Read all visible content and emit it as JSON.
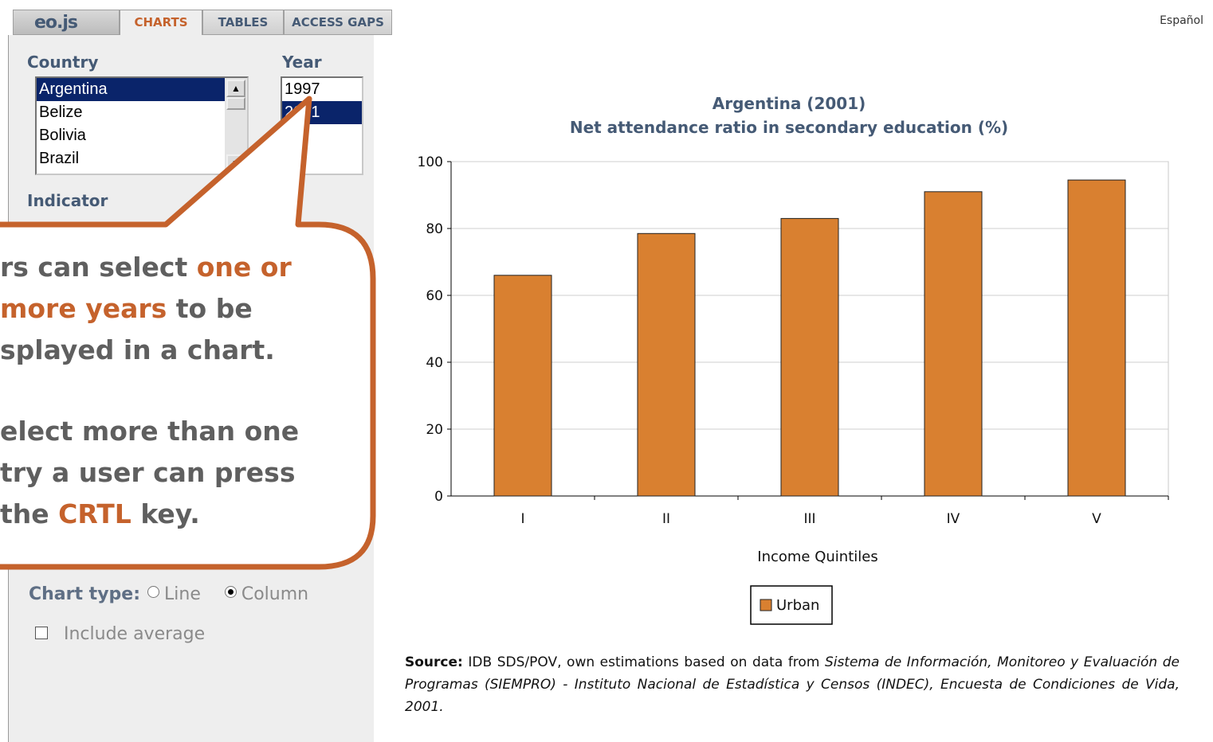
{
  "header": {
    "logo": "eo.js",
    "tabs": [
      {
        "label": "CHARTS",
        "active": true
      },
      {
        "label": "TABLES",
        "active": false
      },
      {
        "label": "ACCESS GAPS",
        "active": false
      }
    ],
    "language": "Español"
  },
  "sidebar": {
    "country_label": "Country",
    "countries": [
      "Argentina",
      "Belize",
      "Bolivia",
      "Brazil"
    ],
    "selected_country": "Argentina",
    "year_label": "Year",
    "years": [
      "1997",
      "2001"
    ],
    "selected_year": "2001",
    "indicator_label": "Indicator",
    "chart_type_label": "Chart type:",
    "chart_types": [
      "Line",
      "Column"
    ],
    "selected_chart_type": "Column",
    "include_average_label": "Include average",
    "include_average_checked": false
  },
  "callout": {
    "line1_a": "rs can select ",
    "line1_b": "one or",
    "line2_a": "more years",
    "line2_b": " to be",
    "line3": "splayed in a chart.",
    "line4": "elect more than one",
    "line5": "try a user can press",
    "line6_a": " the ",
    "line6_b": "CRTL",
    "line6_c": " key.",
    "accent": "#c5622c"
  },
  "chart_data": {
    "type": "bar",
    "title": "Argentina (2001)",
    "subtitle": "Net attendance ratio in secondary education (%)",
    "categories": [
      "I",
      "II",
      "III",
      "IV",
      "V"
    ],
    "series": [
      {
        "name": "Urban",
        "values": [
          66,
          78.5,
          83,
          91,
          94.5
        ],
        "color": "#d98030"
      }
    ],
    "xlabel": "Income Quintiles",
    "ylabel": "",
    "ylim": [
      0,
      100
    ],
    "yticks": [
      0,
      20,
      40,
      60,
      80,
      100
    ],
    "grid": true,
    "legend": "bottom-center"
  },
  "source": {
    "label": "Source:",
    "text": " IDB SDS/POV, own estimations based on data from ",
    "italic": "Sistema de Información, Monitoreo y Evaluación de Programas (SIEMPRO) - Instituto Nacional de Estadística y Censos (INDEC), Encuesta de Condiciones de Vida, 2001."
  }
}
